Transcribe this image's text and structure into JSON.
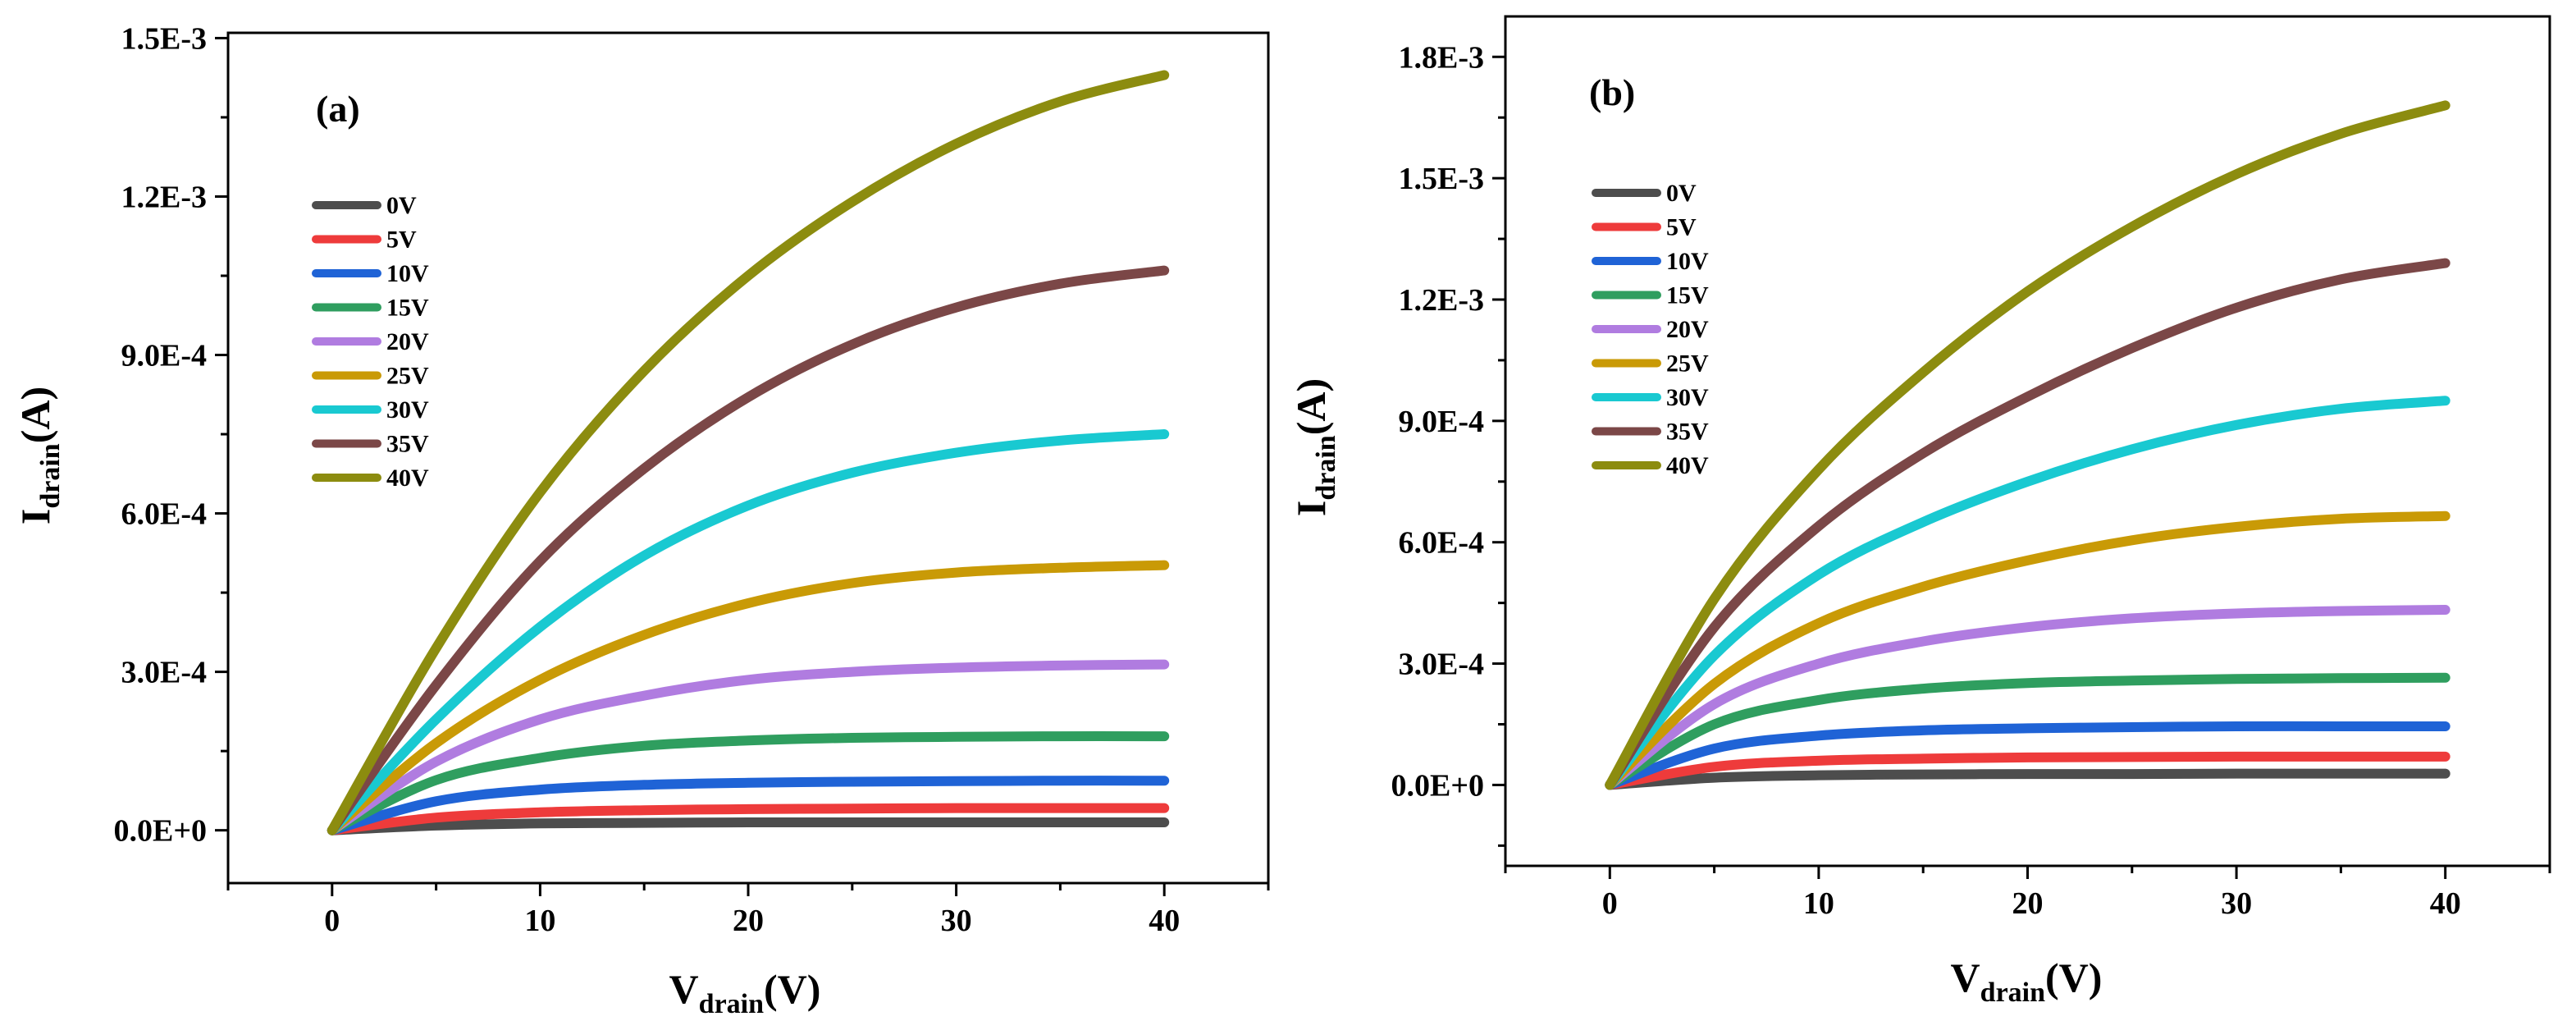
{
  "chart_data": [
    {
      "type": "line",
      "panel_label": "(a)",
      "xlabel": "V",
      "xlabel_sub": "drain",
      "xlabel_suffix": "(V)",
      "ylabel": "I",
      "ylabel_sub": "drain",
      "ylabel_suffix": "(A)",
      "xlim": [
        -5,
        45
      ],
      "ylim": [
        -0.0001,
        0.00151
      ],
      "x_ticks": [
        0,
        10,
        20,
        30,
        40
      ],
      "x_tick_labels": [
        "0",
        "10",
        "20",
        "30",
        "40"
      ],
      "y_ticks": [
        0,
        0.0003,
        0.0006,
        0.0009,
        0.0012,
        0.0015
      ],
      "y_tick_labels": [
        "0.0E+0",
        "3.0E-4",
        "6.0E-4",
        "9.0E-4",
        "1.2E-3",
        "1.5E-3"
      ],
      "legend_position": "upper-left",
      "x": [
        0,
        5,
        10,
        15,
        20,
        25,
        30,
        35,
        40
      ],
      "series": [
        {
          "name": "0V",
          "color": "#4d4d4d",
          "values": [
            0,
            9e-06,
            1.3e-05,
            1.4e-05,
            1.5e-05,
            1.5e-05,
            1.5e-05,
            1.5e-05,
            1.5e-05
          ]
        },
        {
          "name": "5V",
          "color": "#ee3b3b",
          "values": [
            0,
            2.4e-05,
            3.4e-05,
            3.8e-05,
            4e-05,
            4.1e-05,
            4.2e-05,
            4.2e-05,
            4.2e-05
          ]
        },
        {
          "name": "10V",
          "color": "#1f63d6",
          "values": [
            0,
            5.5e-05,
            7.7e-05,
            8.6e-05,
            9e-05,
            9.2e-05,
            9.3e-05,
            9.4e-05,
            9.4e-05
          ]
        },
        {
          "name": "15V",
          "color": "#2f9e5f",
          "values": [
            0,
            9.5e-05,
            0.000137,
            0.00016,
            0.00017,
            0.000175,
            0.000177,
            0.000178,
            0.000178
          ]
        },
        {
          "name": "20V",
          "color": "#b07ce0",
          "values": [
            0,
            0.00013,
            0.00021,
            0.000255,
            0.000285,
            0.0003,
            0.000308,
            0.000312,
            0.000314
          ]
        },
        {
          "name": "25V",
          "color": "#c99a06",
          "values": [
            0,
            0.000165,
            0.000285,
            0.00037,
            0.00043,
            0.000468,
            0.000488,
            0.000497,
            0.000502
          ]
        },
        {
          "name": "30V",
          "color": "#19c9d1",
          "values": [
            0,
            0.00021,
            0.000385,
            0.00052,
            0.000615,
            0.000677,
            0.000715,
            0.000738,
            0.00075
          ]
        },
        {
          "name": "35V",
          "color": "#7b4747",
          "values": [
            0,
            0.000275,
            0.00051,
            0.000685,
            0.00082,
            0.00092,
            0.00099,
            0.001035,
            0.00106
          ]
        },
        {
          "name": "40V",
          "color": "#8c8c0f",
          "values": [
            0,
            0.000345,
            0.00064,
            0.00087,
            0.00105,
            0.00119,
            0.0013,
            0.00138,
            0.00143
          ]
        }
      ]
    },
    {
      "type": "line",
      "panel_label": "(b)",
      "xlabel": "V",
      "xlabel_sub": "drain",
      "xlabel_suffix": "(V)",
      "ylabel": "I",
      "ylabel_sub": "drain",
      "ylabel_suffix": "(A)",
      "xlim": [
        -5,
        45
      ],
      "ylim": [
        -0.0002,
        0.0019
      ],
      "x_ticks": [
        0,
        10,
        20,
        30,
        40
      ],
      "x_tick_labels": [
        "0",
        "10",
        "20",
        "30",
        "40"
      ],
      "y_ticks": [
        0,
        0.0003,
        0.0006,
        0.0009,
        0.0012,
        0.0015,
        0.0018
      ],
      "y_tick_labels": [
        "0.0E+0",
        "3.0E-4",
        "6.0E-4",
        "9.0E-4",
        "1.2E-3",
        "1.5E-3",
        "1.8E-3"
      ],
      "legend_position": "upper-left",
      "x": [
        0,
        5,
        10,
        15,
        20,
        25,
        30,
        35,
        40
      ],
      "series": [
        {
          "name": "0V",
          "color": "#4d4d4d",
          "values": [
            0,
            1.8e-05,
            2.4e-05,
            2.6e-05,
            2.7e-05,
            2.7e-05,
            2.8e-05,
            2.8e-05,
            2.8e-05
          ]
        },
        {
          "name": "5V",
          "color": "#ee3b3b",
          "values": [
            0,
            4.5e-05,
            6e-05,
            6.5e-05,
            6.8e-05,
            6.9e-05,
            7e-05,
            7e-05,
            7e-05
          ]
        },
        {
          "name": "10V",
          "color": "#1f63d6",
          "values": [
            0,
            9e-05,
            0.000122,
            0.000135,
            0.00014,
            0.000143,
            0.000145,
            0.000145,
            0.000145
          ]
        },
        {
          "name": "15V",
          "color": "#2f9e5f",
          "values": [
            0,
            0.00015,
            0.00021,
            0.000238,
            0.000252,
            0.000258,
            0.000262,
            0.000264,
            0.000265
          ]
        },
        {
          "name": "20V",
          "color": "#b07ce0",
          "values": [
            0,
            0.0002,
            0.0003,
            0.000355,
            0.00039,
            0.000412,
            0.000424,
            0.00043,
            0.000433
          ]
        },
        {
          "name": "25V",
          "color": "#c99a06",
          "values": [
            0,
            0.00025,
            0.0004,
            0.00049,
            0.000555,
            0.000605,
            0.000638,
            0.000658,
            0.000665
          ]
        },
        {
          "name": "30V",
          "color": "#19c9d1",
          "values": [
            0,
            0.00032,
            0.00052,
            0.00065,
            0.00075,
            0.00083,
            0.00089,
            0.00093,
            0.00095
          ]
        },
        {
          "name": "35V",
          "color": "#7b4747",
          "values": [
            0,
            0.00039,
            0.00064,
            0.00082,
            0.00096,
            0.00108,
            0.00118,
            0.00125,
            0.00129
          ]
        },
        {
          "name": "40V",
          "color": "#8c8c0f",
          "values": [
            0,
            0.00046,
            0.00078,
            0.00102,
            0.00122,
            0.00138,
            0.00151,
            0.00161,
            0.00168
          ]
        }
      ]
    }
  ]
}
